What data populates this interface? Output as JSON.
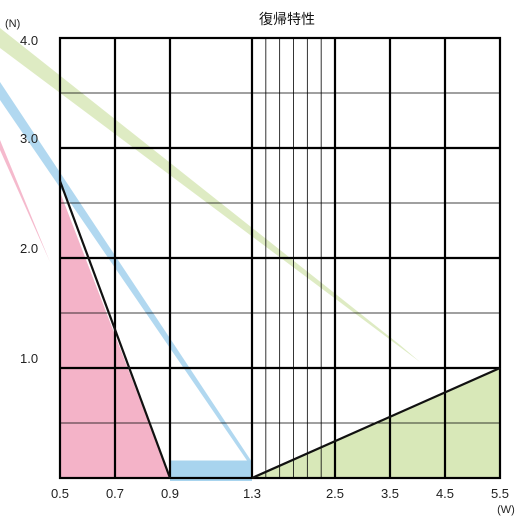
{
  "chart_data": {
    "type": "line",
    "title": "復帰特性",
    "x_unit": "(W)",
    "y_unit": "(N)",
    "x_tick_labels": [
      "0.5",
      "0.7",
      "0.9",
      "1.3",
      "2.5",
      "3.5",
      "4.5",
      "5.5"
    ],
    "y_tick_labels": [
      "1.0",
      "2.0",
      "3.0",
      "4.0"
    ],
    "ylim": [
      0,
      4.0
    ],
    "grid": true,
    "colors": {
      "pink": "#f4b3c8",
      "blue": "#a8d4ee",
      "green": "#d8e8b8",
      "line": "#111111"
    },
    "series": [
      {
        "color_key": "pink",
        "points": [
          [
            0.5,
            2.6
          ],
          [
            0.9,
            0
          ]
        ]
      },
      {
        "color_key": "blue",
        "points": [
          [
            0.9,
            0.15
          ],
          [
            1.3,
            0.15
          ]
        ]
      },
      {
        "color_key": "green",
        "points": [
          [
            1.3,
            0
          ],
          [
            5.5,
            1.0
          ]
        ]
      },
      {
        "color_key": "line",
        "points": [
          [
            0.5,
            2.7
          ],
          [
            0.9,
            0
          ]
        ]
      },
      {
        "color_key": "line",
        "points": [
          [
            1.3,
            0
          ],
          [
            5.5,
            1.0
          ]
        ]
      }
    ]
  }
}
